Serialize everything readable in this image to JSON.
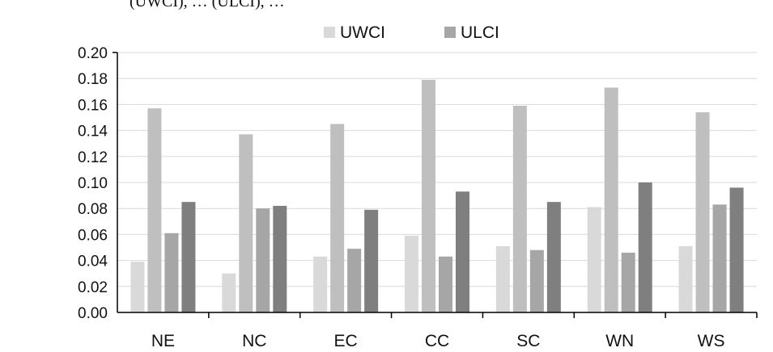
{
  "cropped_caption": "(UWCI), … (ULCI), …",
  "chart_data": {
    "type": "bar",
    "categories": [
      "NE",
      "NC",
      "EC",
      "CC",
      "SC",
      "WN",
      "WS"
    ],
    "ylim": [
      0,
      0.2
    ],
    "yticks": [
      "0.00",
      "0.02",
      "0.04",
      "0.06",
      "0.08",
      "0.10",
      "0.12",
      "0.14",
      "0.16",
      "0.18",
      "0.20"
    ],
    "grid": true,
    "legend_position": "top",
    "legend": [
      {
        "label": "UWCI",
        "color": "#d9d9d9"
      },
      {
        "label": "ULCI",
        "color": "#a6a6a6"
      }
    ],
    "series": [
      {
        "color": "#d9d9d9",
        "values": [
          0.039,
          0.03,
          0.043,
          0.059,
          0.051,
          0.081,
          0.051
        ]
      },
      {
        "color": "#bfbfbf",
        "values": [
          0.157,
          0.137,
          0.145,
          0.179,
          0.159,
          0.173,
          0.154
        ]
      },
      {
        "color": "#a6a6a6",
        "values": [
          0.061,
          0.08,
          0.049,
          0.043,
          0.048,
          0.046,
          0.083
        ]
      },
      {
        "color": "#7f7f7f",
        "values": [
          0.085,
          0.082,
          0.079,
          0.093,
          0.085,
          0.1,
          0.096
        ]
      }
    ]
  }
}
